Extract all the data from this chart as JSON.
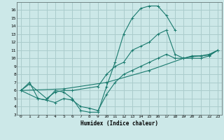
{
  "xlabel": "Humidex (Indice chaleur)",
  "bg_color": "#cce8e8",
  "grid_color": "#aacccc",
  "line_color": "#1a7a6e",
  "xlim": [
    -0.5,
    23.5
  ],
  "ylim": [
    3,
    17
  ],
  "xticks": [
    0,
    1,
    2,
    3,
    4,
    5,
    6,
    7,
    8,
    9,
    10,
    11,
    12,
    13,
    14,
    15,
    16,
    17,
    18,
    19,
    20,
    21,
    22,
    23
  ],
  "yticks": [
    3,
    4,
    5,
    6,
    7,
    8,
    9,
    10,
    11,
    12,
    13,
    14,
    15,
    16
  ],
  "curves": [
    {
      "x": [
        0,
        1,
        2,
        3,
        4,
        5,
        6,
        7,
        8,
        9,
        10,
        11,
        12,
        13,
        14,
        15,
        16,
        17,
        18
      ],
      "y": [
        6,
        7,
        5,
        4.8,
        6,
        5.8,
        5,
        3.5,
        3.3,
        3.3,
        6.5,
        9.5,
        13,
        15,
        16.2,
        16.5,
        16.5,
        15.3,
        13.5
      ]
    },
    {
      "x": [
        0,
        1,
        3,
        4,
        5,
        6,
        9,
        10,
        11,
        12,
        13,
        14,
        15,
        16,
        17,
        18,
        19,
        20,
        21,
        22,
        23
      ],
      "y": [
        6,
        6.8,
        5,
        5.8,
        6,
        6,
        6.5,
        8,
        9,
        9.5,
        11,
        11.5,
        12,
        13,
        13.5,
        10.5,
        10,
        10.3,
        10.3,
        10.5,
        11
      ]
    },
    {
      "x": [
        0,
        2,
        3,
        4,
        5,
        6,
        7,
        8,
        9,
        10,
        11,
        12,
        13,
        14,
        15,
        16,
        17,
        18,
        19,
        20,
        21,
        22,
        23
      ],
      "y": [
        6,
        5,
        4.8,
        4.5,
        5,
        4.8,
        4,
        3.8,
        3.5,
        5.5,
        7,
        8,
        8.5,
        9,
        9.5,
        10,
        10.5,
        10,
        10,
        10,
        10,
        10.3,
        11
      ]
    },
    {
      "x": [
        0,
        5,
        10,
        15,
        19,
        20,
        21,
        22,
        23
      ],
      "y": [
        6,
        6.2,
        7,
        8.5,
        10,
        10.2,
        10.3,
        10.4,
        11
      ]
    }
  ]
}
